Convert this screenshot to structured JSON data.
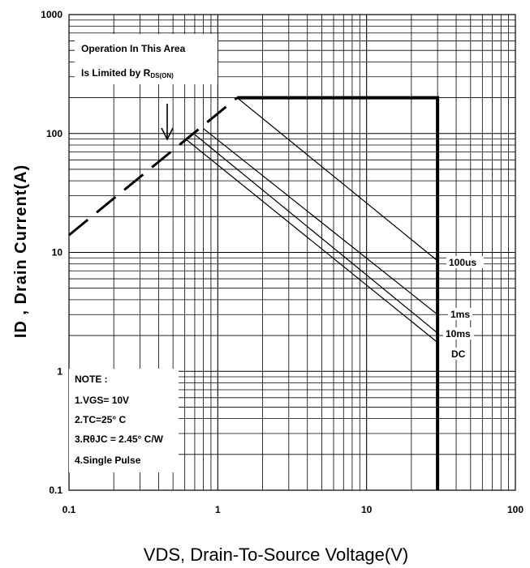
{
  "chart_data": {
    "type": "line",
    "x_scale": "log",
    "y_scale": "log",
    "xlim": [
      0.1,
      100
    ],
    "ylim": [
      0.1,
      1000
    ],
    "grid": true,
    "xlabel": "VDS, Drain-To-Source Voltage(V)",
    "ylabel": "ID , Drain Current(A)",
    "x_ticks": [
      "0.1",
      "1",
      "10",
      "100"
    ],
    "y_ticks": [
      "0.1",
      "1",
      "10",
      "100",
      "1000"
    ],
    "rds_limit": {
      "x": [
        0.1,
        1.35
      ],
      "y": [
        14,
        200
      ]
    },
    "package_limit": {
      "x": [
        1.35,
        30,
        30
      ],
      "y": [
        200,
        200,
        0.1
      ]
    },
    "series": [
      {
        "name": "100us",
        "x": [
          1.35,
          30
        ],
        "y": [
          200,
          8.5
        ]
      },
      {
        "name": "1ms",
        "x": [
          0.8,
          30
        ],
        "y": [
          110,
          3.0
        ]
      },
      {
        "name": "10ms",
        "x": [
          0.7,
          30
        ],
        "y": [
          98,
          2.1
        ]
      },
      {
        "name": "DC",
        "x": [
          0.62,
          30
        ],
        "y": [
          88,
          1.75
        ]
      }
    ],
    "annotation": {
      "line1": "Operation In This Area",
      "line2_prefix": "Is Limited by R",
      "line2_sub": "DS(ON)"
    },
    "notes": {
      "title": "NOTE :",
      "items": [
        "1.VGS= 10V",
        "2.TC=25° C",
        "3.RθJC = 2.45° C/W",
        "4.Single Pulse"
      ]
    }
  }
}
